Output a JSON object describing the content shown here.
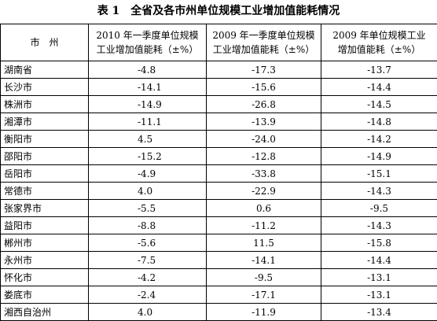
{
  "title": "表 1　全省及各市州单位规模工业增加值能耗情况",
  "table": {
    "header": [
      [
        "市　州"
      ],
      [
        "2010 年一季度单位规模",
        "工业增加值能耗（±%）"
      ],
      [
        "2009 年一季度单位规模",
        "工业增加值能耗（±%）"
      ],
      [
        "2009 年单位规模工业",
        "增加值能耗（±%）"
      ]
    ],
    "rows": [
      [
        "湖南省",
        "-4.8",
        "-17.3",
        "-13.7"
      ],
      [
        "长沙市",
        "-14.1",
        "-15.6",
        "-14.4"
      ],
      [
        "株洲市",
        "-14.9",
        "-26.8",
        "-14.5"
      ],
      [
        "湘潭市",
        "-11.1",
        "-13.9",
        "-14.8"
      ],
      [
        "衡阳市",
        "4.5",
        "-24.0",
        "-14.2"
      ],
      [
        "邵阳市",
        "-15.2",
        "-12.8",
        "-14.9"
      ],
      [
        "岳阳市",
        "-4.9",
        "-33.8",
        "-15.1"
      ],
      [
        "常德市",
        "4.0",
        "-22.9",
        "-14.3"
      ],
      [
        "张家界市",
        "-5.5",
        "0.6",
        "-9.5"
      ],
      [
        "益阳市",
        "-8.8",
        "-11.2",
        "-14.3"
      ],
      [
        "郴州市",
        "-5.6",
        "11.5",
        "-15.8"
      ],
      [
        "永州市",
        "-7.5",
        "-14.1",
        "-14.4"
      ],
      [
        "怀化市",
        "-4.2",
        "-9.5",
        "-13.1"
      ],
      [
        "娄底市",
        "-2.4",
        "-17.1",
        "-13.1"
      ],
      [
        "湘西自治州",
        "4.0",
        "-11.9",
        "-13.4"
      ]
    ]
  }
}
